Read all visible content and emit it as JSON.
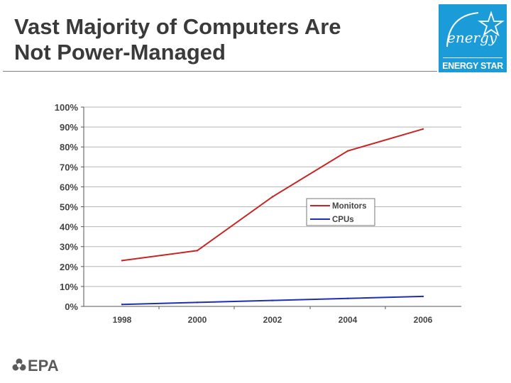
{
  "slide": {
    "title_line1": "Vast Majority of Computers Are",
    "title_line2": "Not Power-Managed"
  },
  "logos": {
    "energy_star_script": "energy",
    "energy_star_text": "ENERGY STAR",
    "epa": "EPA"
  },
  "colors": {
    "monitors": "#cc2222",
    "cpus": "#1f2fb3",
    "energy_star_blue": "#1b9bd7"
  },
  "chart_data": {
    "type": "line",
    "title": "",
    "xlabel": "",
    "ylabel": "",
    "x": [
      1998,
      2000,
      2002,
      2004,
      2006
    ],
    "x_tick_labels": [
      "1998",
      "2000",
      "2002",
      "2004",
      "2006"
    ],
    "y_tick_labels": [
      "0%",
      "10%",
      "20%",
      "30%",
      "40%",
      "50%",
      "60%",
      "70%",
      "80%",
      "90%",
      "100%"
    ],
    "ylim": [
      0,
      100
    ],
    "grid": "horizontal",
    "legend_position": "right",
    "series": [
      {
        "name": "Monitors",
        "color": "#cc2222",
        "values": [
          23,
          28,
          55,
          78,
          89
        ]
      },
      {
        "name": "CPUs",
        "color": "#1f2fb3",
        "values": [
          1,
          2,
          3,
          4,
          5
        ]
      }
    ]
  }
}
